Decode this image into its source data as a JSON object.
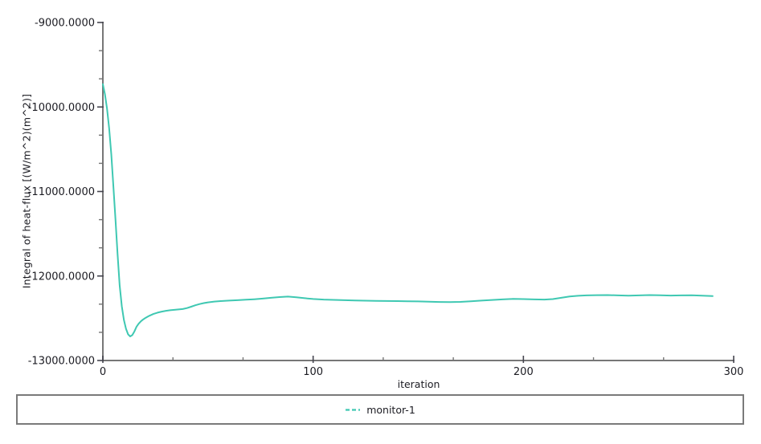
{
  "chart_data": {
    "type": "line",
    "title": "",
    "xlabel": "iteration",
    "ylabel": "Integral of heat-flux [(W/m^2)(m^2)]",
    "xlim": [
      0,
      300
    ],
    "ylim": [
      -13000,
      -9000
    ],
    "grid": false,
    "x_ticks": {
      "values": [
        0,
        100,
        200,
        300
      ],
      "labels": [
        "0",
        "100",
        "200",
        "300"
      ],
      "minor_divisions": 3
    },
    "y_ticks": {
      "values": [
        -9000,
        -10000,
        -11000,
        -12000,
        -13000
      ],
      "labels": [
        "-9000.0000",
        "-10000.0000",
        "-11000.0000",
        "-12000.0000",
        "-13000.0000"
      ],
      "minor_divisions": 3
    },
    "legend": {
      "position": "bottom",
      "entries": [
        {
          "label": "monitor-1",
          "color": "#3fc8b2",
          "sample": "dashed-line"
        }
      ]
    },
    "series": [
      {
        "name": "monitor-1",
        "color": "#3fc8b2",
        "points": [
          [
            0,
            -9730
          ],
          [
            1,
            -9850
          ],
          [
            2,
            -10020
          ],
          [
            3,
            -10250
          ],
          [
            4,
            -10560
          ],
          [
            5,
            -10940
          ],
          [
            6,
            -11330
          ],
          [
            7,
            -11740
          ],
          [
            8,
            -12110
          ],
          [
            9,
            -12360
          ],
          [
            10,
            -12520
          ],
          [
            11,
            -12625
          ],
          [
            12,
            -12690
          ],
          [
            13,
            -12715
          ],
          [
            14,
            -12700
          ],
          [
            15,
            -12655
          ],
          [
            16,
            -12600
          ],
          [
            17,
            -12565
          ],
          [
            18,
            -12538
          ],
          [
            19,
            -12517
          ],
          [
            20,
            -12500
          ],
          [
            22,
            -12472
          ],
          [
            24,
            -12450
          ],
          [
            26,
            -12434
          ],
          [
            28,
            -12421
          ],
          [
            30,
            -12412
          ],
          [
            32,
            -12405
          ],
          [
            34,
            -12400
          ],
          [
            36,
            -12396
          ],
          [
            38,
            -12391
          ],
          [
            40,
            -12380
          ],
          [
            42,
            -12363
          ],
          [
            44,
            -12346
          ],
          [
            46,
            -12332
          ],
          [
            48,
            -12321
          ],
          [
            50,
            -12312
          ],
          [
            53,
            -12303
          ],
          [
            56,
            -12297
          ],
          [
            60,
            -12291
          ],
          [
            64,
            -12286
          ],
          [
            68,
            -12281
          ],
          [
            72,
            -12275
          ],
          [
            76,
            -12267
          ],
          [
            80,
            -12258
          ],
          [
            84,
            -12249
          ],
          [
            88,
            -12244
          ],
          [
            92,
            -12252
          ],
          [
            96,
            -12263
          ],
          [
            100,
            -12272
          ],
          [
            105,
            -12279
          ],
          [
            110,
            -12283
          ],
          [
            115,
            -12286
          ],
          [
            120,
            -12289
          ],
          [
            125,
            -12292
          ],
          [
            130,
            -12294
          ],
          [
            135,
            -12296
          ],
          [
            140,
            -12297
          ],
          [
            145,
            -12299
          ],
          [
            150,
            -12301
          ],
          [
            155,
            -12304
          ],
          [
            160,
            -12307
          ],
          [
            165,
            -12309
          ],
          [
            170,
            -12306
          ],
          [
            175,
            -12299
          ],
          [
            180,
            -12291
          ],
          [
            185,
            -12284
          ],
          [
            190,
            -12277
          ],
          [
            195,
            -12271
          ],
          [
            200,
            -12273
          ],
          [
            205,
            -12277
          ],
          [
            210,
            -12279
          ],
          [
            214,
            -12273
          ],
          [
            218,
            -12258
          ],
          [
            222,
            -12243
          ],
          [
            226,
            -12234
          ],
          [
            230,
            -12229
          ],
          [
            235,
            -12227
          ],
          [
            240,
            -12226
          ],
          [
            245,
            -12229
          ],
          [
            250,
            -12232
          ],
          [
            255,
            -12229
          ],
          [
            260,
            -12226
          ],
          [
            265,
            -12228
          ],
          [
            270,
            -12231
          ],
          [
            275,
            -12229
          ],
          [
            280,
            -12228
          ],
          [
            285,
            -12232
          ],
          [
            290,
            -12238
          ]
        ]
      }
    ]
  },
  "colors": {
    "background": "#ffffff",
    "axis_line": "#777777",
    "major_tick": "#45454f",
    "minor_tick": "#747474",
    "tick_text": "#1b1b22",
    "legend_border": "#7a7a7a"
  }
}
